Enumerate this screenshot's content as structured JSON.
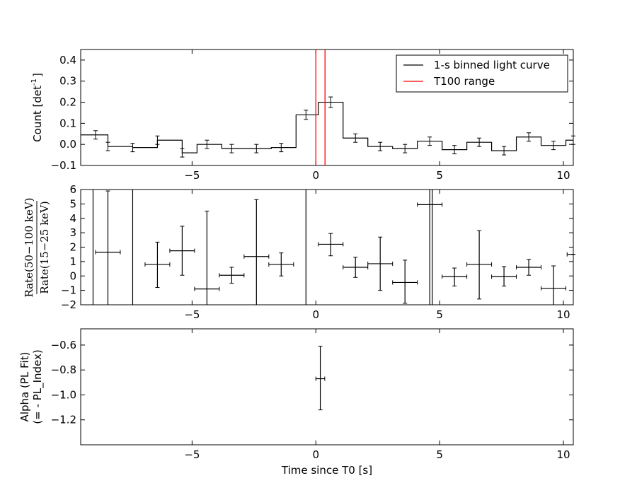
{
  "chart_data": [
    {
      "type": "line",
      "ylabel_text": "Count [det",
      "ylabel_sup": "-1",
      "ylabel_close": "]",
      "xlim": [
        -9.5,
        10.4
      ],
      "ylim": [
        -0.1,
        0.45
      ],
      "xticks": [
        -5,
        0,
        5,
        10
      ],
      "xtick_labels": [
        "−5",
        "0",
        "5",
        "10"
      ],
      "yticks": [
        -0.1,
        0.0,
        0.1,
        0.2,
        0.3,
        0.4
      ],
      "ytick_labels": [
        "−0.1",
        "0.0",
        "0.1",
        "0.2",
        "0.3",
        "0.4"
      ],
      "legend_placement": "top-right",
      "series": [
        {
          "name": "1-s binned light curve",
          "color": "#000000",
          "style": "step",
          "bins": [
            {
              "x0": -9.5,
              "x1": -8.4,
              "xc": -8.9,
              "y": 0.045,
              "err": 0.02
            },
            {
              "x0": -8.4,
              "x1": -7.4,
              "xc": -8.4,
              "y": -0.01,
              "err": 0.02
            },
            {
              "x0": -7.4,
              "x1": -6.4,
              "xc": -7.4,
              "y": -0.015,
              "err": 0.02
            },
            {
              "x0": -6.4,
              "x1": -5.4,
              "xc": -6.4,
              "y": 0.02,
              "err": 0.02
            },
            {
              "x0": -5.4,
              "x1": -4.8,
              "xc": -5.4,
              "y": -0.04,
              "err": 0.02
            },
            {
              "x0": -4.8,
              "x1": -3.8,
              "xc": -4.4,
              "y": 0.0,
              "err": 0.02
            },
            {
              "x0": -3.8,
              "x1": -2.8,
              "xc": -3.4,
              "y": -0.02,
              "err": 0.02
            },
            {
              "x0": -2.8,
              "x1": -1.8,
              "xc": -2.4,
              "y": -0.02,
              "err": 0.02
            },
            {
              "x0": -1.8,
              "x1": -0.8,
              "xc": -1.4,
              "y": -0.015,
              "err": 0.02
            },
            {
              "x0": -0.8,
              "x1": 0.1,
              "xc": -0.4,
              "y": 0.14,
              "err": 0.022
            },
            {
              "x0": 0.1,
              "x1": 1.1,
              "xc": 0.6,
              "y": 0.2,
              "err": 0.025
            },
            {
              "x0": 1.1,
              "x1": 2.1,
              "xc": 1.6,
              "y": 0.03,
              "err": 0.02
            },
            {
              "x0": 2.1,
              "x1": 3.1,
              "xc": 2.6,
              "y": -0.01,
              "err": 0.02
            },
            {
              "x0": 3.1,
              "x1": 4.1,
              "xc": 3.6,
              "y": -0.02,
              "err": 0.02
            },
            {
              "x0": 4.1,
              "x1": 5.1,
              "xc": 4.6,
              "y": 0.015,
              "err": 0.02
            },
            {
              "x0": 5.1,
              "x1": 6.1,
              "xc": 5.6,
              "y": -0.025,
              "err": 0.02
            },
            {
              "x0": 6.1,
              "x1": 7.1,
              "xc": 6.6,
              "y": 0.01,
              "err": 0.02
            },
            {
              "x0": 7.1,
              "x1": 8.1,
              "xc": 7.6,
              "y": -0.03,
              "err": 0.02
            },
            {
              "x0": 8.1,
              "x1": 9.1,
              "xc": 8.6,
              "y": 0.035,
              "err": 0.02
            },
            {
              "x0": 9.1,
              "x1": 10.1,
              "xc": 9.6,
              "y": -0.005,
              "err": 0.02
            },
            {
              "x0": 10.1,
              "x1": 10.4,
              "xc": 10.4,
              "y": 0.02,
              "err": 0.02
            }
          ]
        },
        {
          "name": "T100 range",
          "color": "#ff0000",
          "style": "vlines",
          "x": [
            0.0,
            0.37
          ]
        }
      ]
    },
    {
      "type": "scatter",
      "ylabel_num": "Rate(50−100 keV)",
      "ylabel_den": "Rate(15−25 keV)",
      "xlim": [
        -9.5,
        10.4
      ],
      "ylim": [
        -2,
        6
      ],
      "xticks": [
        -5,
        0,
        5,
        10
      ],
      "xtick_labels": [
        "−5",
        "0",
        "5",
        "10"
      ],
      "yticks": [
        -2,
        -1,
        0,
        1,
        2,
        3,
        4,
        5,
        6
      ],
      "ytick_labels": [
        "−2",
        "−1",
        "0",
        "1",
        "2",
        "3",
        "4",
        "5",
        "6"
      ],
      "vertical_lines": [
        -9.0,
        -7.4,
        -0.4,
        4.7
      ],
      "series": [
        {
          "color": "#000000",
          "points": [
            {
              "x": -8.4,
              "y": 1.65,
              "xerr": 0.5,
              "ylo": -2.0,
              "yhi": 5.9
            },
            {
              "x": -6.4,
              "y": 0.8,
              "xerr": 0.5,
              "ylo": -0.8,
              "yhi": 2.35
            },
            {
              "x": -5.4,
              "y": 1.75,
              "xerr": 0.5,
              "ylo": 0.05,
              "yhi": 3.45
            },
            {
              "x": -4.4,
              "y": -0.9,
              "xerr": 0.5,
              "ylo": -2.0,
              "yhi": 4.5
            },
            {
              "x": -3.4,
              "y": 0.05,
              "xerr": 0.5,
              "ylo": -0.5,
              "yhi": 0.6
            },
            {
              "x": -2.4,
              "y": 1.35,
              "xerr": 0.5,
              "ylo": -2.0,
              "yhi": 5.3
            },
            {
              "x": -1.4,
              "y": 0.8,
              "xerr": 0.5,
              "ylo": 0.0,
              "yhi": 1.6
            },
            {
              "x": 0.6,
              "y": 2.2,
              "xerr": 0.5,
              "ylo": 1.4,
              "yhi": 2.95
            },
            {
              "x": 1.6,
              "y": 0.6,
              "xerr": 0.5,
              "ylo": -0.1,
              "yhi": 1.3
            },
            {
              "x": 2.6,
              "y": 0.85,
              "xerr": 0.5,
              "ylo": -1.0,
              "yhi": 2.7
            },
            {
              "x": 3.6,
              "y": -0.45,
              "xerr": 0.5,
              "ylo": -1.9,
              "yhi": 1.1
            },
            {
              "x": 4.6,
              "y": 4.95,
              "xerr": 0.5,
              "ylo": -2.0,
              "yhi": 6.0
            },
            {
              "x": 5.6,
              "y": -0.05,
              "xerr": 0.5,
              "ylo": -0.7,
              "yhi": 0.55
            },
            {
              "x": 6.6,
              "y": 0.8,
              "xerr": 0.5,
              "ylo": -1.6,
              "yhi": 3.15
            },
            {
              "x": 7.6,
              "y": -0.05,
              "xerr": 0.5,
              "ylo": -0.7,
              "yhi": 0.65
            },
            {
              "x": 8.6,
              "y": 0.6,
              "xerr": 0.5,
              "ylo": 0.05,
              "yhi": 1.15
            },
            {
              "x": 9.6,
              "y": -0.85,
              "xerr": 0.5,
              "ylo": -2.0,
              "yhi": 0.7
            },
            {
              "x": 10.4,
              "y": 1.5,
              "xerr": 0.25,
              "ylo": 1.5,
              "yhi": 1.5
            }
          ]
        }
      ]
    },
    {
      "type": "scatter",
      "ylabel_line1": "Alpha (PL Fit)",
      "ylabel_line2": "(= - PL_Index)",
      "xlabel": "Time since T0 [s]",
      "xlim": [
        -9.5,
        10.4
      ],
      "ylim": [
        -1.4,
        -0.47
      ],
      "xticks": [
        -5,
        0,
        5,
        10
      ],
      "xtick_labels": [
        "−5",
        "0",
        "5",
        "10"
      ],
      "yticks": [
        -1.2,
        -1.0,
        -0.8,
        -0.6
      ],
      "ytick_labels": [
        "−1.2",
        "−1.0",
        "−0.8",
        "−0.6"
      ],
      "series": [
        {
          "color": "#000000",
          "points": [
            {
              "x": 0.18,
              "y": -0.87,
              "xerr": 0.18,
              "ylo": -1.12,
              "yhi": -0.61
            }
          ]
        }
      ]
    }
  ]
}
